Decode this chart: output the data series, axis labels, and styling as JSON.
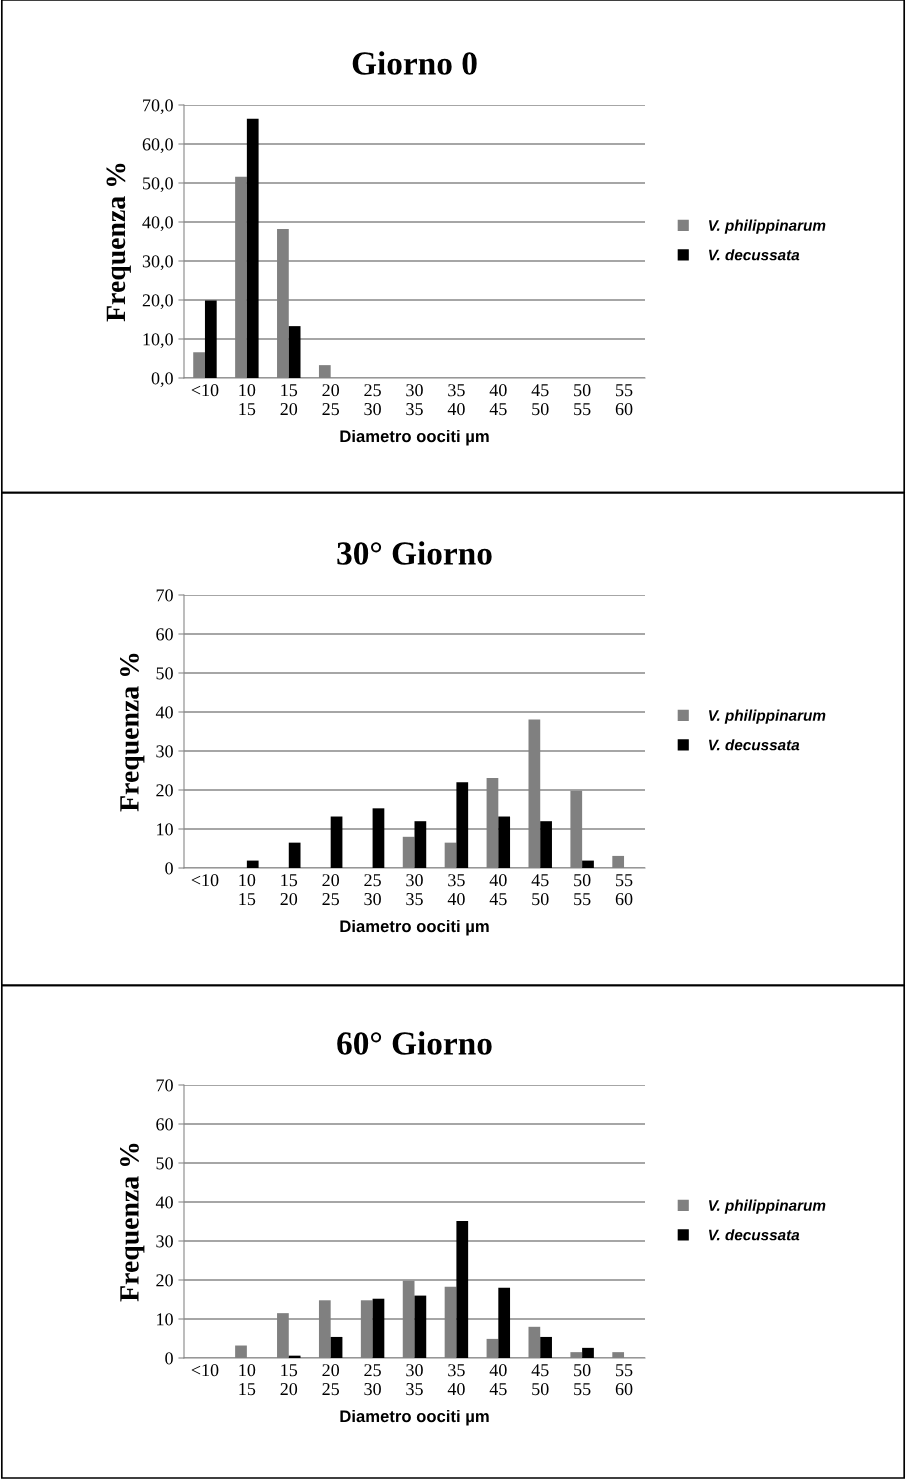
{
  "chart_data": [
    {
      "type": "bar",
      "title": "Giorno 0",
      "xlabel": "Diametro oociti µm",
      "ylabel": "Frequenza %",
      "categories": [
        "<10",
        "10\n15",
        "15\n20",
        "20\n25",
        "25\n30",
        "30\n35",
        "35\n40",
        "40\n45",
        "45\n50",
        "50\n55",
        "55\n60"
      ],
      "series": [
        {
          "name": "V. philippinarum",
          "color": "#808080",
          "values": [
            6.6,
            51.6,
            38.2,
            3.3,
            0,
            0,
            0,
            0,
            0,
            0,
            0
          ]
        },
        {
          "name": "V. decussata",
          "color": "#000000",
          "values": [
            19.9,
            66.5,
            13.3,
            0,
            0,
            0,
            0,
            0,
            0,
            0,
            0
          ]
        }
      ],
      "ylim": [
        0,
        70
      ],
      "yticks": [
        {
          "value": 0,
          "label": "0,0"
        },
        {
          "value": 10,
          "label": "10,0"
        },
        {
          "value": 20,
          "label": "20,0"
        },
        {
          "value": 30,
          "label": "30,0"
        },
        {
          "value": 40,
          "label": "40,0"
        },
        {
          "value": 50,
          "label": "50,0"
        },
        {
          "value": 60,
          "label": "60,0"
        },
        {
          "value": 70,
          "label": "70,0"
        }
      ],
      "grid": "y",
      "legend": "right"
    },
    {
      "type": "bar",
      "title": "30° Giorno",
      "xlabel": "Diametro oociti µm",
      "ylabel": "Frequenza %",
      "categories": [
        "<10",
        "10\n15",
        "15\n20",
        "20\n25",
        "25\n30",
        "30\n35",
        "35\n40",
        "40\n45",
        "45\n50",
        "50\n55",
        "55\n60"
      ],
      "series": [
        {
          "name": "V. philippinarum",
          "color": "#808080",
          "values": [
            0,
            0,
            0,
            0,
            0,
            8.0,
            6.5,
            23.1,
            38.1,
            19.8,
            3.1
          ]
        },
        {
          "name": "V. decussata",
          "color": "#000000",
          "values": [
            0,
            1.9,
            6.5,
            13.2,
            15.3,
            12.0,
            22.0,
            13.2,
            12.0,
            1.9,
            0
          ]
        }
      ],
      "ylim": [
        0,
        70
      ],
      "yticks": [
        0,
        10,
        20,
        30,
        40,
        50,
        60,
        70
      ],
      "grid": "y",
      "legend": "right"
    },
    {
      "type": "bar",
      "title": "60° Giorno",
      "xlabel": "Diametro oociti µm",
      "ylabel": "Frequenza %",
      "categories": [
        "<10",
        "10\n15",
        "15\n20",
        "20\n25",
        "25\n30",
        "30\n35",
        "35\n40",
        "40\n45",
        "45\n50",
        "50\n55",
        "55\n60"
      ],
      "series": [
        {
          "name": "V. philippinarum",
          "color": "#808080",
          "values": [
            0,
            3.2,
            11.5,
            14.8,
            14.8,
            19.8,
            18.3,
            4.9,
            8.0,
            1.5,
            1.5
          ]
        },
        {
          "name": "V. decussata",
          "color": "#000000",
          "values": [
            0,
            0,
            0.6,
            5.4,
            15.2,
            16.0,
            35.1,
            18.0,
            5.4,
            2.6,
            0
          ]
        }
      ],
      "ylim": [
        0,
        70
      ],
      "yticks": [
        0,
        10,
        20,
        30,
        40,
        50,
        60,
        70
      ],
      "grid": "y",
      "legend": "right"
    }
  ]
}
